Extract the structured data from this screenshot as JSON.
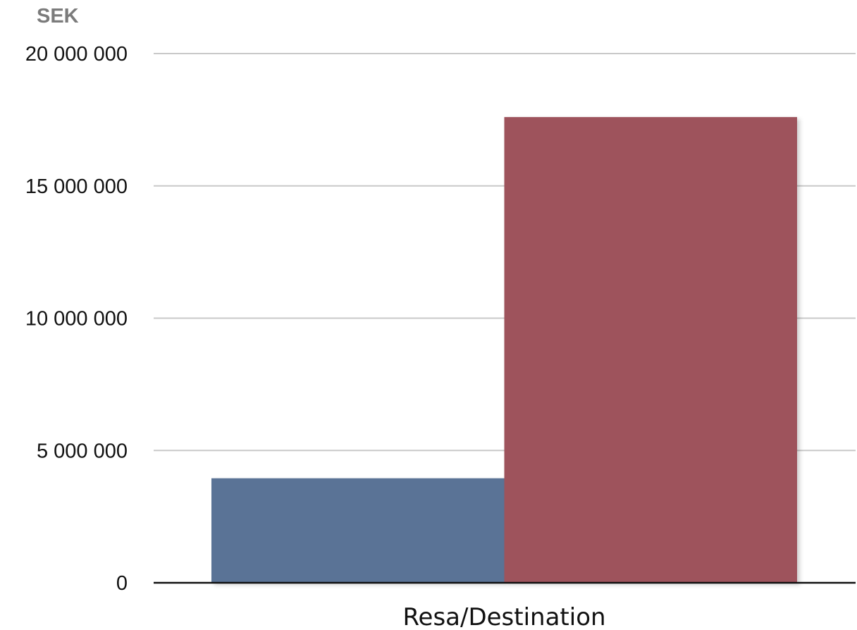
{
  "chart_data": {
    "type": "bar",
    "unit_label": "SEK",
    "categories": [
      "Resa/Destination"
    ],
    "series": [
      {
        "values": [
          3950000
        ],
        "color": "#5a7396"
      },
      {
        "values": [
          17600000
        ],
        "color": "#9e525b"
      }
    ],
    "ylim": [
      0,
      20000000
    ],
    "yticks": [
      {
        "value": 0,
        "label": "0"
      },
      {
        "value": 5000000,
        "label": "5 000 000"
      },
      {
        "value": 10000000,
        "label": "10 000 000"
      },
      {
        "value": 15000000,
        "label": "15 000 000"
      },
      {
        "value": 20000000,
        "label": "20 000 000"
      }
    ],
    "grid": true,
    "legend": "none"
  }
}
